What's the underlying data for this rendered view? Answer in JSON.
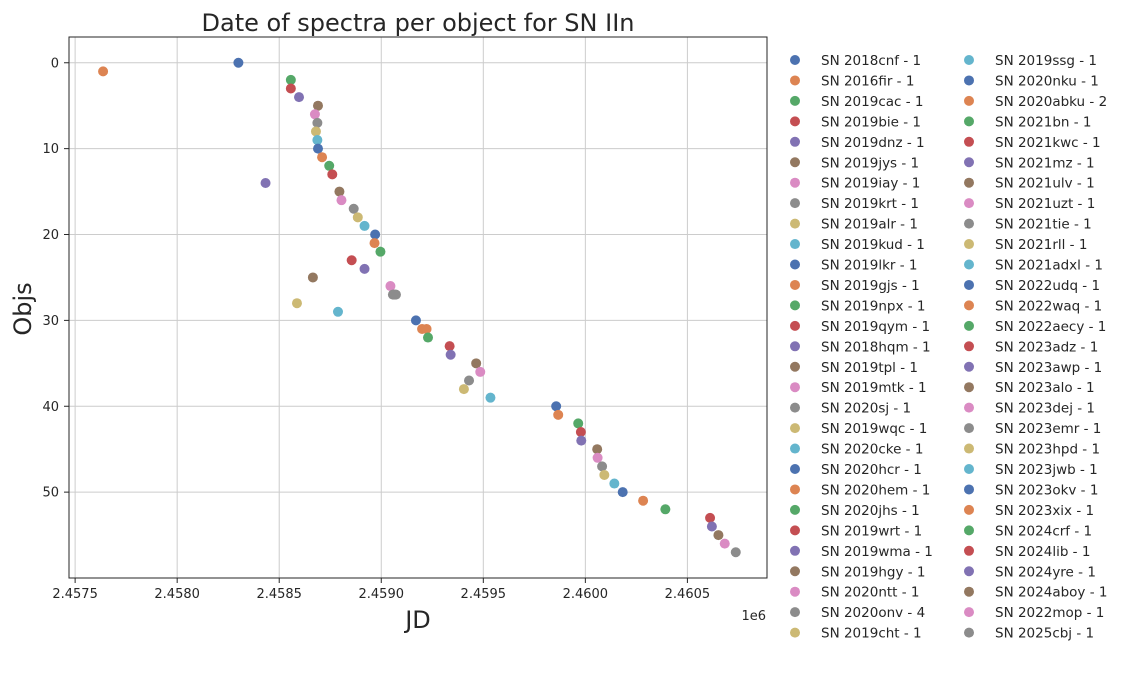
{
  "chart_data": {
    "type": "scatter",
    "title": "Date of spectra per object for SN IIn",
    "xlabel": "JD",
    "ylabel": "Objs",
    "x_offset_label": "1e6",
    "xlim": [
      2457470,
      2460890
    ],
    "ylim": [
      60,
      -3
    ],
    "x_ticks": [
      {
        "value": 2457500,
        "label": "2.4575"
      },
      {
        "value": 2458000,
        "label": "2.4580"
      },
      {
        "value": 2458500,
        "label": "2.4585"
      },
      {
        "value": 2459000,
        "label": "2.4590"
      },
      {
        "value": 2459500,
        "label": "2.4595"
      },
      {
        "value": 2460000,
        "label": "2.4600"
      },
      {
        "value": 2460500,
        "label": "2.4605"
      }
    ],
    "y_ticks": [
      {
        "value": 0,
        "label": "0"
      },
      {
        "value": 10,
        "label": "10"
      },
      {
        "value": 20,
        "label": "20"
      },
      {
        "value": 30,
        "label": "30"
      },
      {
        "value": 40,
        "label": "40"
      },
      {
        "value": 50,
        "label": "50"
      }
    ],
    "grid": true,
    "legend_position": "outside-right, two columns",
    "series": [
      {
        "name": "SN 2018cnf - 1",
        "color": "#4c72b0",
        "points": [
          [
            2458300,
            0
          ]
        ]
      },
      {
        "name": "SN 2016fir - 1",
        "color": "#dd8452",
        "points": [
          [
            2457637,
            1
          ]
        ]
      },
      {
        "name": "SN 2019cac - 1",
        "color": "#55a868",
        "points": [
          [
            2458557,
            2
          ]
        ]
      },
      {
        "name": "SN 2019bie - 1",
        "color": "#c44e52",
        "points": [
          [
            2458557,
            3
          ]
        ]
      },
      {
        "name": "SN 2019dnz - 1",
        "color": "#8172b3",
        "points": [
          [
            2458597,
            4
          ]
        ]
      },
      {
        "name": "SN 2019jys - 1",
        "color": "#937860",
        "points": [
          [
            2458690,
            5
          ]
        ]
      },
      {
        "name": "SN 2019iay - 1",
        "color": "#da8bc3",
        "points": [
          [
            2458675,
            6
          ]
        ]
      },
      {
        "name": "SN 2019krt - 1",
        "color": "#8c8c8c",
        "points": [
          [
            2458687,
            7
          ]
        ]
      },
      {
        "name": "SN 2019alr - 1",
        "color": "#ccb974",
        "points": [
          [
            2458680,
            8
          ]
        ]
      },
      {
        "name": "SN 2019kud - 1",
        "color": "#64b5cd",
        "points": [
          [
            2458687,
            9
          ]
        ]
      },
      {
        "name": "SN 2019lkr - 1",
        "color": "#4c72b0",
        "points": [
          [
            2458690,
            10
          ]
        ]
      },
      {
        "name": "SN 2019gjs - 1",
        "color": "#dd8452",
        "points": [
          [
            2458710,
            11
          ]
        ]
      },
      {
        "name": "SN 2019npx - 1",
        "color": "#55a868",
        "points": [
          [
            2458745,
            12
          ]
        ]
      },
      {
        "name": "SN 2019qym - 1",
        "color": "#c44e52",
        "points": [
          [
            2458760,
            13
          ]
        ]
      },
      {
        "name": "SN 2018hqm - 1",
        "color": "#8172b3",
        "points": [
          [
            2458433,
            14
          ]
        ]
      },
      {
        "name": "SN 2019tpl - 1",
        "color": "#937860",
        "points": [
          [
            2458795,
            15
          ]
        ]
      },
      {
        "name": "SN 2019mtk - 1",
        "color": "#da8bc3",
        "points": [
          [
            2458805,
            16
          ]
        ]
      },
      {
        "name": "SN 2020sj - 1",
        "color": "#8c8c8c",
        "points": [
          [
            2458865,
            17
          ]
        ]
      },
      {
        "name": "SN 2019wqc - 1",
        "color": "#ccb974",
        "points": [
          [
            2458885,
            18
          ]
        ]
      },
      {
        "name": "SN 2020cke - 1",
        "color": "#64b5cd",
        "points": [
          [
            2458918,
            19
          ]
        ]
      },
      {
        "name": "SN 2020hcr - 1",
        "color": "#4c72b0",
        "points": [
          [
            2458970,
            20
          ]
        ]
      },
      {
        "name": "SN 2020hem - 1",
        "color": "#dd8452",
        "points": [
          [
            2458967,
            21
          ]
        ]
      },
      {
        "name": "SN 2020jhs - 1",
        "color": "#55a868",
        "points": [
          [
            2458996,
            22
          ]
        ]
      },
      {
        "name": "SN 2019wrt - 1",
        "color": "#c44e52",
        "points": [
          [
            2458855,
            23
          ]
        ]
      },
      {
        "name": "SN 2019wma - 1",
        "color": "#8172b3",
        "points": [
          [
            2458918,
            24
          ]
        ]
      },
      {
        "name": "SN 2019hgy - 1",
        "color": "#937860",
        "points": [
          [
            2458665,
            25
          ]
        ]
      },
      {
        "name": "SN 2020ntt - 1",
        "color": "#da8bc3",
        "points": [
          [
            2459045,
            26
          ]
        ]
      },
      {
        "name": "SN 2020onv - 4",
        "color": "#8c8c8c",
        "points": [
          [
            2459057,
            27
          ],
          [
            2459062,
            27
          ],
          [
            2459067,
            27
          ],
          [
            2459072,
            27
          ]
        ]
      },
      {
        "name": "SN 2019cht - 1",
        "color": "#ccb974",
        "points": [
          [
            2458587,
            28
          ]
        ]
      },
      {
        "name": "SN 2019ssg - 1",
        "color": "#64b5cd",
        "points": [
          [
            2458788,
            29
          ]
        ]
      },
      {
        "name": "SN 2020nku - 1",
        "color": "#4c72b0",
        "points": [
          [
            2459170,
            30
          ]
        ]
      },
      {
        "name": "SN 2020abku - 2",
        "color": "#dd8452",
        "points": [
          [
            2459200,
            31
          ],
          [
            2459222,
            31
          ]
        ]
      },
      {
        "name": "SN 2021bn - 1",
        "color": "#55a868",
        "points": [
          [
            2459229,
            32
          ]
        ]
      },
      {
        "name": "SN 2021kwc - 1",
        "color": "#c44e52",
        "points": [
          [
            2459335,
            33
          ]
        ]
      },
      {
        "name": "SN 2021mz - 1",
        "color": "#8172b3",
        "points": [
          [
            2459340,
            34
          ]
        ]
      },
      {
        "name": "SN 2021ulv - 1",
        "color": "#937860",
        "points": [
          [
            2459465,
            35
          ]
        ]
      },
      {
        "name": "SN 2021uzt - 1",
        "color": "#da8bc3",
        "points": [
          [
            2459485,
            36
          ]
        ]
      },
      {
        "name": "SN 2021tie - 1",
        "color": "#8c8c8c",
        "points": [
          [
            2459430,
            37
          ]
        ]
      },
      {
        "name": "SN 2021rll - 1",
        "color": "#ccb974",
        "points": [
          [
            2459405,
            38
          ]
        ]
      },
      {
        "name": "SN 2021adxl - 1",
        "color": "#64b5cd",
        "points": [
          [
            2459535,
            39
          ]
        ]
      },
      {
        "name": "SN 2022udq - 1",
        "color": "#4c72b0",
        "points": [
          [
            2459857,
            40
          ]
        ]
      },
      {
        "name": "SN 2022waq - 1",
        "color": "#dd8452",
        "points": [
          [
            2459867,
            41
          ]
        ]
      },
      {
        "name": "SN 2022aecy - 1",
        "color": "#55a868",
        "points": [
          [
            2459965,
            42
          ]
        ]
      },
      {
        "name": "SN 2023adz - 1",
        "color": "#c44e52",
        "points": [
          [
            2459978,
            43
          ]
        ]
      },
      {
        "name": "SN 2023awp - 1",
        "color": "#8172b3",
        "points": [
          [
            2459980,
            44
          ]
        ]
      },
      {
        "name": "SN 2023alo - 1",
        "color": "#937860",
        "points": [
          [
            2460058,
            45
          ]
        ]
      },
      {
        "name": "SN 2023dej - 1",
        "color": "#da8bc3",
        "points": [
          [
            2460060,
            46
          ]
        ]
      },
      {
        "name": "SN 2023emr - 1",
        "color": "#8c8c8c",
        "points": [
          [
            2460082,
            47
          ]
        ]
      },
      {
        "name": "SN 2023hpd - 1",
        "color": "#ccb974",
        "points": [
          [
            2460093,
            48
          ]
        ]
      },
      {
        "name": "SN 2023jwb - 1",
        "color": "#64b5cd",
        "points": [
          [
            2460142,
            49
          ]
        ]
      },
      {
        "name": "SN 2023okv - 1",
        "color": "#4c72b0",
        "points": [
          [
            2460183,
            50
          ]
        ]
      },
      {
        "name": "SN 2023xix - 1",
        "color": "#dd8452",
        "points": [
          [
            2460283,
            51
          ]
        ]
      },
      {
        "name": "SN 2024crf - 1",
        "color": "#55a868",
        "points": [
          [
            2460392,
            52
          ]
        ]
      },
      {
        "name": "SN 2024lib - 1",
        "color": "#c44e52",
        "points": [
          [
            2460611,
            53
          ]
        ]
      },
      {
        "name": "SN 2024yre - 1",
        "color": "#8172b3",
        "points": [
          [
            2460620,
            54
          ]
        ]
      },
      {
        "name": "SN 2024aboy - 1",
        "color": "#937860",
        "points": [
          [
            2460652,
            55
          ]
        ]
      },
      {
        "name": "SN 2022mop - 1",
        "color": "#da8bc3",
        "points": [
          [
            2460683,
            56
          ]
        ]
      },
      {
        "name": "SN 2025cbj - 1",
        "color": "#8c8c8c",
        "points": [
          [
            2460737,
            57
          ]
        ]
      }
    ]
  }
}
